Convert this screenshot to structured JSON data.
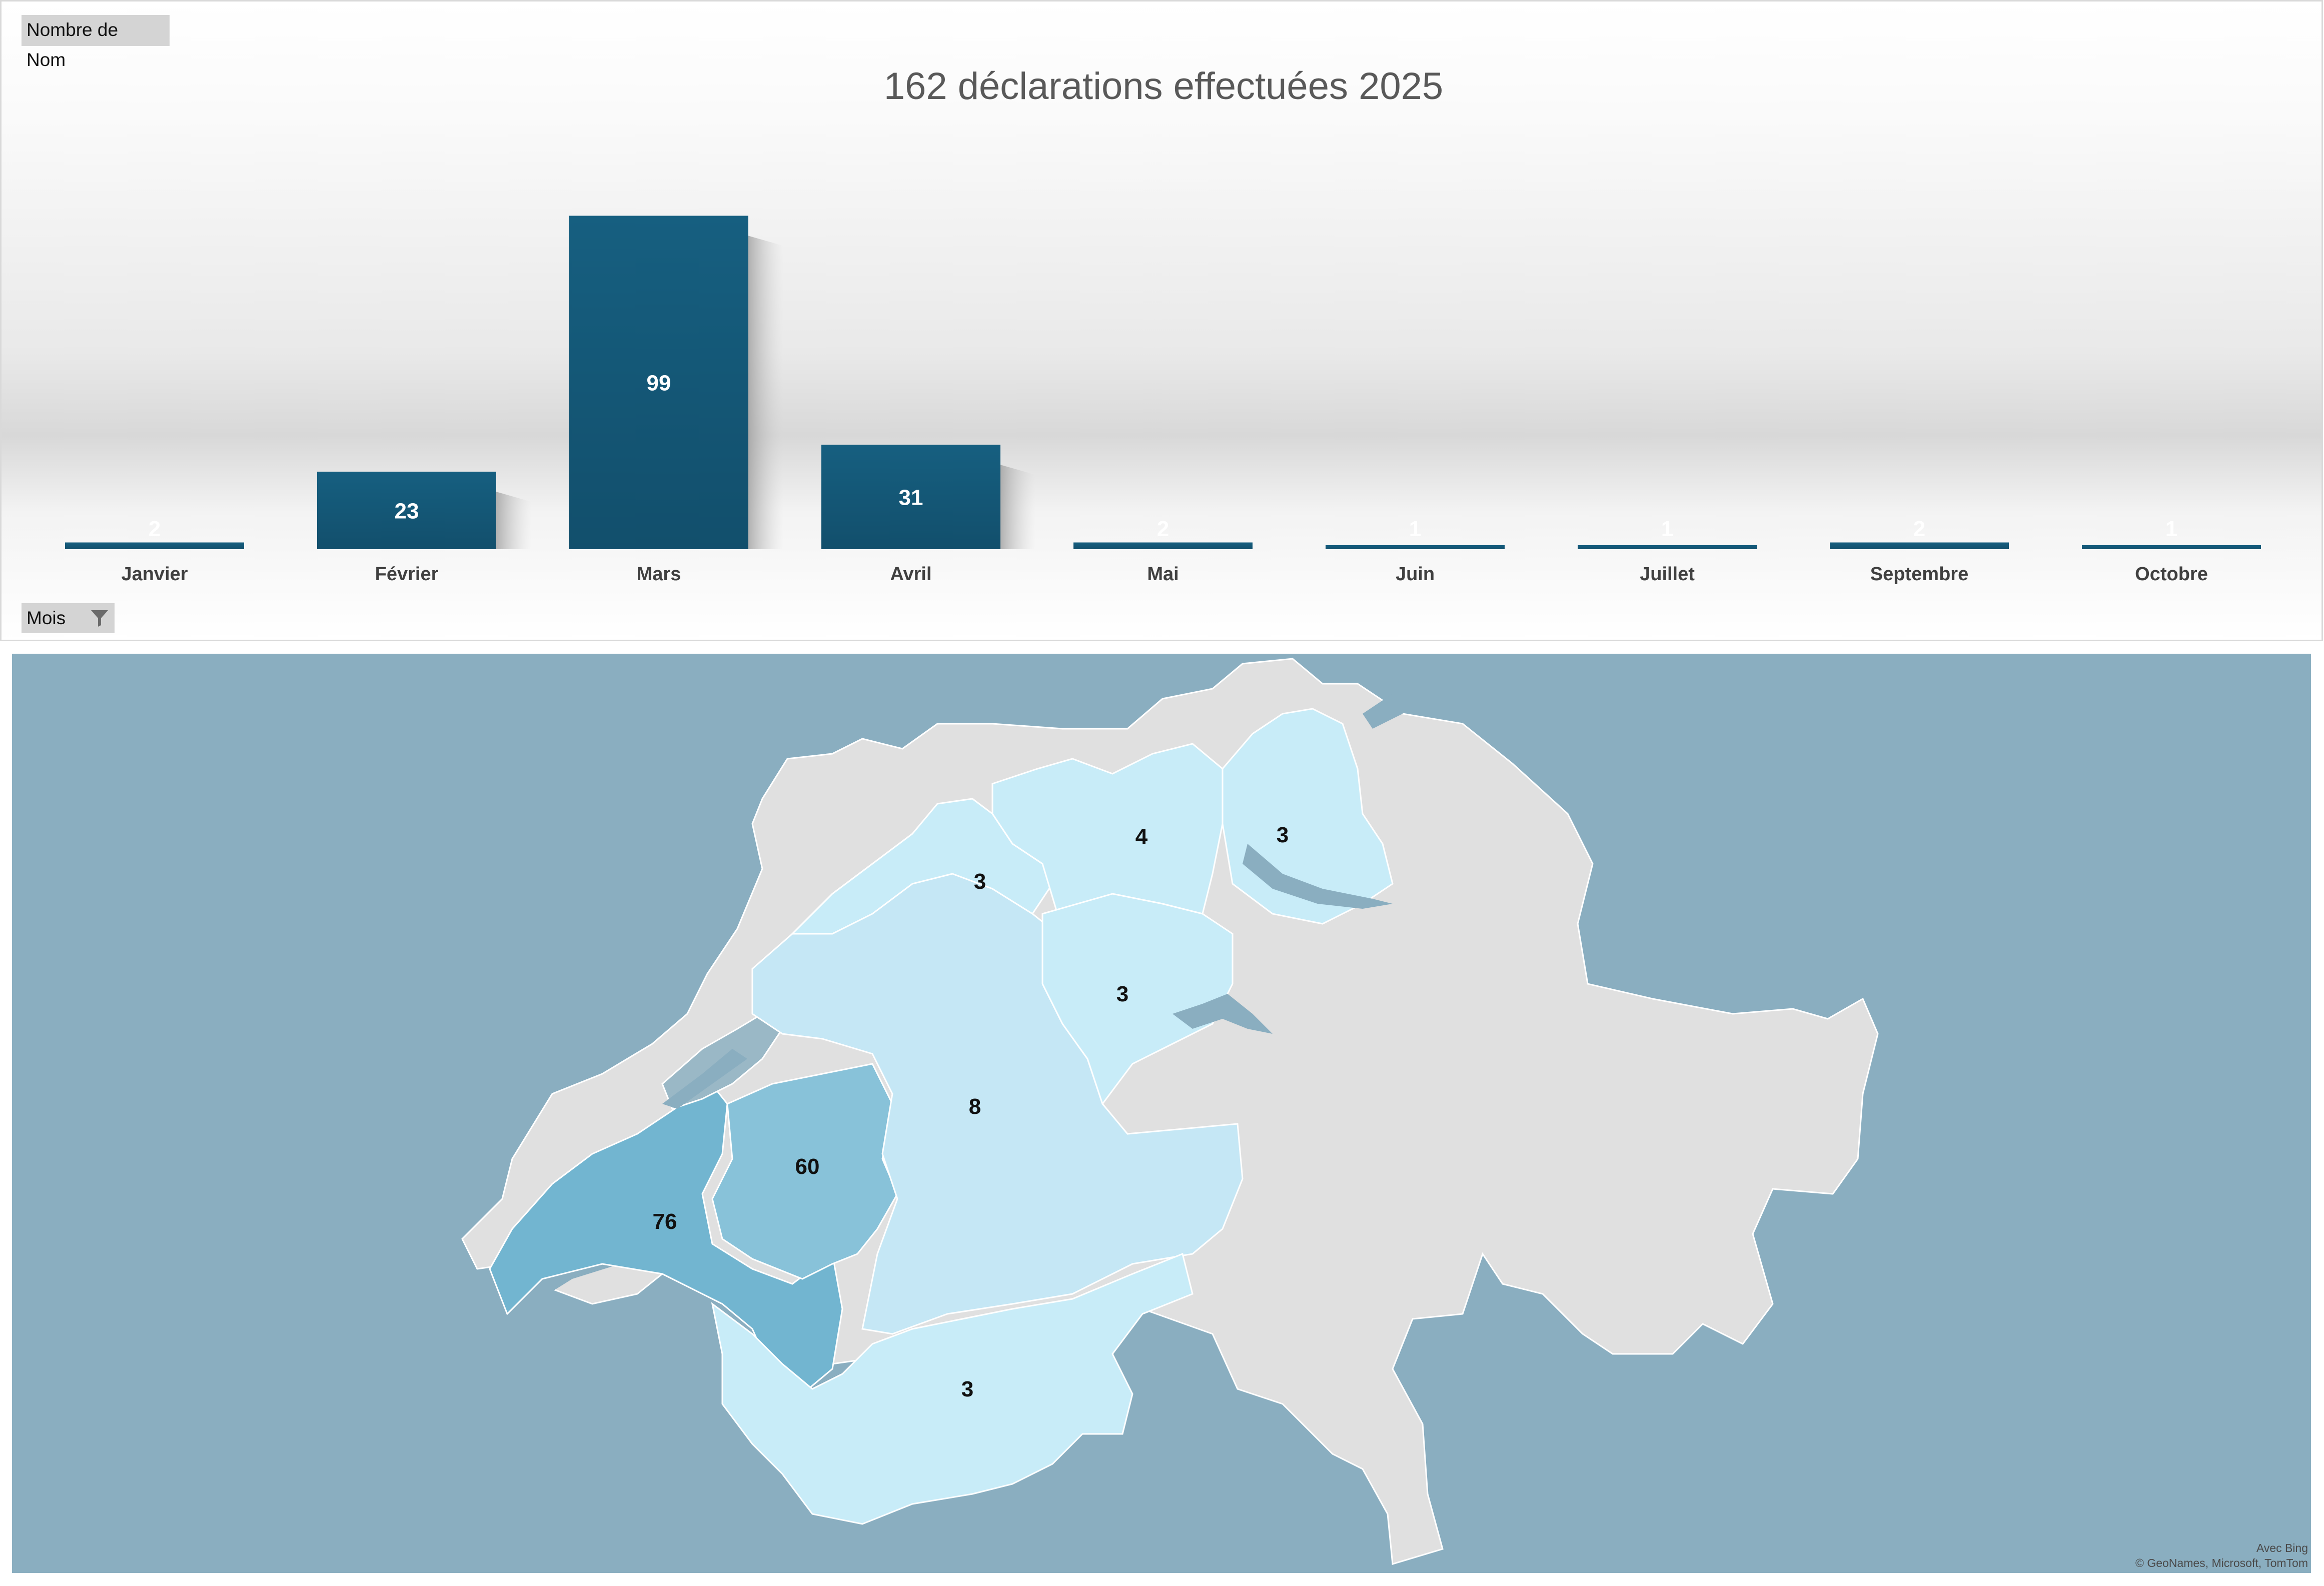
{
  "pivot": {
    "value_field": "Nombre de Nom",
    "axis_field": "Mois"
  },
  "chart_data": [
    {
      "type": "bar",
      "title": "162 déclarations effectuées 2025",
      "categories": [
        "Janvier",
        "Février",
        "Mars",
        "Avril",
        "Mai",
        "Juin",
        "Juillet",
        "Septembre",
        "Octobre"
      ],
      "values": [
        2,
        23,
        99,
        31,
        2,
        1,
        1,
        2,
        1
      ],
      "ylim": [
        0,
        120
      ],
      "legend": "none",
      "grid": false,
      "colors": {
        "bar": "#165f80",
        "bar_dark": "#124f6c",
        "label": "#ffffff",
        "axis_text": "#404040"
      }
    },
    {
      "type": "map",
      "region": "Suisse (cantons)",
      "labels": [
        "76",
        "60",
        "8",
        "3",
        "3",
        "4",
        "3",
        "3"
      ],
      "colors": {
        "water": "#8aaec0",
        "no_data": "#e0e0e0",
        "low": "#c8ecf8",
        "high": "#72b5d0",
        "border": "#ffffff"
      }
    }
  ],
  "map": {
    "credit_1": "Avec Bing",
    "credit_2": "© GeoNames, Microsoft, TomTom"
  }
}
